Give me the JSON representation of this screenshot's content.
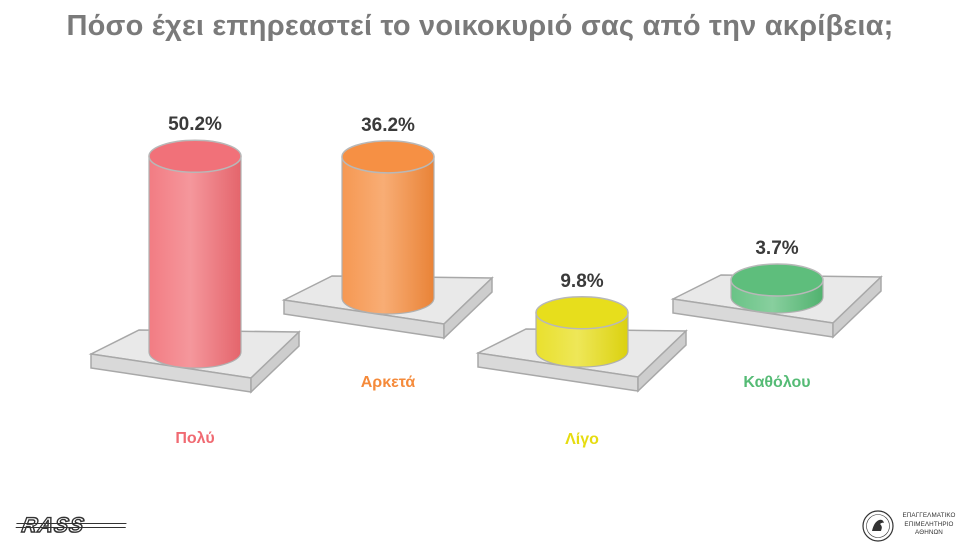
{
  "title": "Πόσο έχει επηρεαστεί το νοικοκυριό σας από την ακρίβεια;",
  "chart_data": {
    "type": "bar",
    "style": "3d-cylinder",
    "title": "Πόσο έχει επηρεαστεί το νοικοκυριό σας από την ακρίβεια;",
    "categories": [
      "Πολύ",
      "Αρκετά",
      "Λίγο",
      "Καθόλου"
    ],
    "values": [
      50.2,
      36.2,
      9.8,
      3.7
    ],
    "value_labels": [
      "50.2%",
      "36.2%",
      "9.8%",
      "3.7%"
    ],
    "unit": "%",
    "colors": [
      "#f06a72",
      "#f58a3a",
      "#e6dc10",
      "#55bb75"
    ],
    "grid": false,
    "legend": "none"
  },
  "logos": {
    "left": "RASS",
    "right": [
      "ΕΠΑΓΓΕΛΜΑΤΙΚΟ",
      "ΕΠΙΜΕΛΗΤΗΡΙΟ",
      "ΑΘΗΝΩΝ"
    ]
  }
}
